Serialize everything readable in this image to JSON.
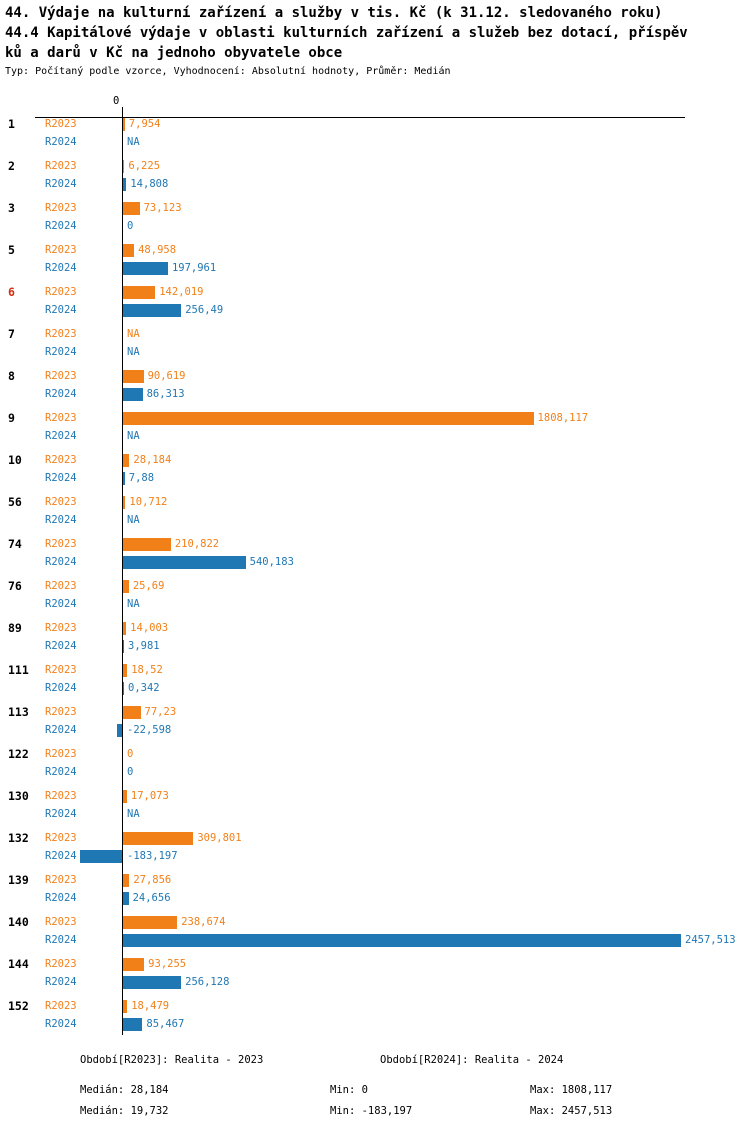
{
  "title": {
    "line1": "44. Výdaje na kulturní zařízení a služby v tis. Kč (k 31.12. sledovaného roku)",
    "line2": "44.4 Kapitálové výdaje v oblasti kulturních zařízení a služeb bez dotací, příspěv",
    "line3": "ků a darů v Kč na jednoho obyvatele obce",
    "subtitle": "Typ: Počítaný podle vzorce, Vyhodnocení: Absolutní hodnoty, Průměr: Medián"
  },
  "chart_data": {
    "type": "bar",
    "orientation": "horizontal",
    "axis_zero_label": "0",
    "x_axis": {
      "min": -183.197,
      "max": 2457.513
    },
    "series_names": [
      "R2023",
      "R2024"
    ],
    "colors": {
      "R2023": "#f28019",
      "R2024": "#1f77b4",
      "highlight": "#d62b10"
    },
    "rows": [
      {
        "cat": "1",
        "r2023": {
          "label": "7,954",
          "value": 7.954
        },
        "r2024": {
          "label": "NA",
          "value": null
        }
      },
      {
        "cat": "2",
        "r2023": {
          "label": "6,225",
          "value": 6.225
        },
        "r2024": {
          "label": "14,808",
          "value": 14.808
        }
      },
      {
        "cat": "3",
        "r2023": {
          "label": "73,123",
          "value": 73.123
        },
        "r2024": {
          "label": "0",
          "value": 0
        }
      },
      {
        "cat": "5",
        "r2023": {
          "label": "48,958",
          "value": 48.958
        },
        "r2024": {
          "label": "197,961",
          "value": 197.961
        }
      },
      {
        "cat": "6",
        "highlight": true,
        "r2023": {
          "label": "142,019",
          "value": 142.019
        },
        "r2024": {
          "label": "256,49",
          "value": 256.49
        }
      },
      {
        "cat": "7",
        "r2023": {
          "label": "NA",
          "value": null
        },
        "r2024": {
          "label": "NA",
          "value": null
        }
      },
      {
        "cat": "8",
        "r2023": {
          "label": "90,619",
          "value": 90.619
        },
        "r2024": {
          "label": "86,313",
          "value": 86.313
        }
      },
      {
        "cat": "9",
        "r2023": {
          "label": "1808,117",
          "value": 1808.117
        },
        "r2024": {
          "label": "NA",
          "value": null
        }
      },
      {
        "cat": "10",
        "r2023": {
          "label": "28,184",
          "value": 28.184
        },
        "r2024": {
          "label": "7,88",
          "value": 7.88
        }
      },
      {
        "cat": "56",
        "r2023": {
          "label": "10,712",
          "value": 10.712
        },
        "r2024": {
          "label": "NA",
          "value": null
        }
      },
      {
        "cat": "74",
        "r2023": {
          "label": "210,822",
          "value": 210.822
        },
        "r2024": {
          "label": "540,183",
          "value": 540.183
        }
      },
      {
        "cat": "76",
        "r2023": {
          "label": "25,69",
          "value": 25.69
        },
        "r2024": {
          "label": "NA",
          "value": null
        }
      },
      {
        "cat": "89",
        "r2023": {
          "label": "14,003",
          "value": 14.003
        },
        "r2024": {
          "label": "3,981",
          "value": 3.981
        }
      },
      {
        "cat": "111",
        "r2023": {
          "label": "18,52",
          "value": 18.52
        },
        "r2024": {
          "label": "0,342",
          "value": 0.342
        }
      },
      {
        "cat": "113",
        "r2023": {
          "label": "77,23",
          "value": 77.23
        },
        "r2024": {
          "label": "-22,598",
          "value": -22.598
        }
      },
      {
        "cat": "122",
        "r2023": {
          "label": "0",
          "value": 0
        },
        "r2024": {
          "label": "0",
          "value": 0
        }
      },
      {
        "cat": "130",
        "r2023": {
          "label": "17,073",
          "value": 17.073
        },
        "r2024": {
          "label": "NA",
          "value": null
        }
      },
      {
        "cat": "132",
        "r2023": {
          "label": "309,801",
          "value": 309.801
        },
        "r2024": {
          "label": "-183,197",
          "value": -183.197
        }
      },
      {
        "cat": "139",
        "r2023": {
          "label": "27,856",
          "value": 27.856
        },
        "r2024": {
          "label": "24,656",
          "value": 24.656
        }
      },
      {
        "cat": "140",
        "r2023": {
          "label": "238,674",
          "value": 238.674
        },
        "r2024": {
          "label": "2457,513",
          "value": 2457.513
        }
      },
      {
        "cat": "144",
        "r2023": {
          "label": "93,255",
          "value": 93.255
        },
        "r2024": {
          "label": "256,128",
          "value": 256.128
        }
      },
      {
        "cat": "152",
        "r2023": {
          "label": "18,479",
          "value": 18.479
        },
        "r2024": {
          "label": "85,467",
          "value": 85.467
        }
      }
    ]
  },
  "legend": {
    "r2023": "Období[R2023]: Realita - 2023",
    "r2024": "Období[R2024]: Realita - 2024"
  },
  "stats": {
    "r2023": {
      "median": "Medián: 28,184",
      "min": "Min: 0",
      "max": "Max: 1808,117"
    },
    "r2024": {
      "median": "Medián: 19,732",
      "min": "Min: -183,197",
      "max": "Max: 2457,513"
    }
  }
}
